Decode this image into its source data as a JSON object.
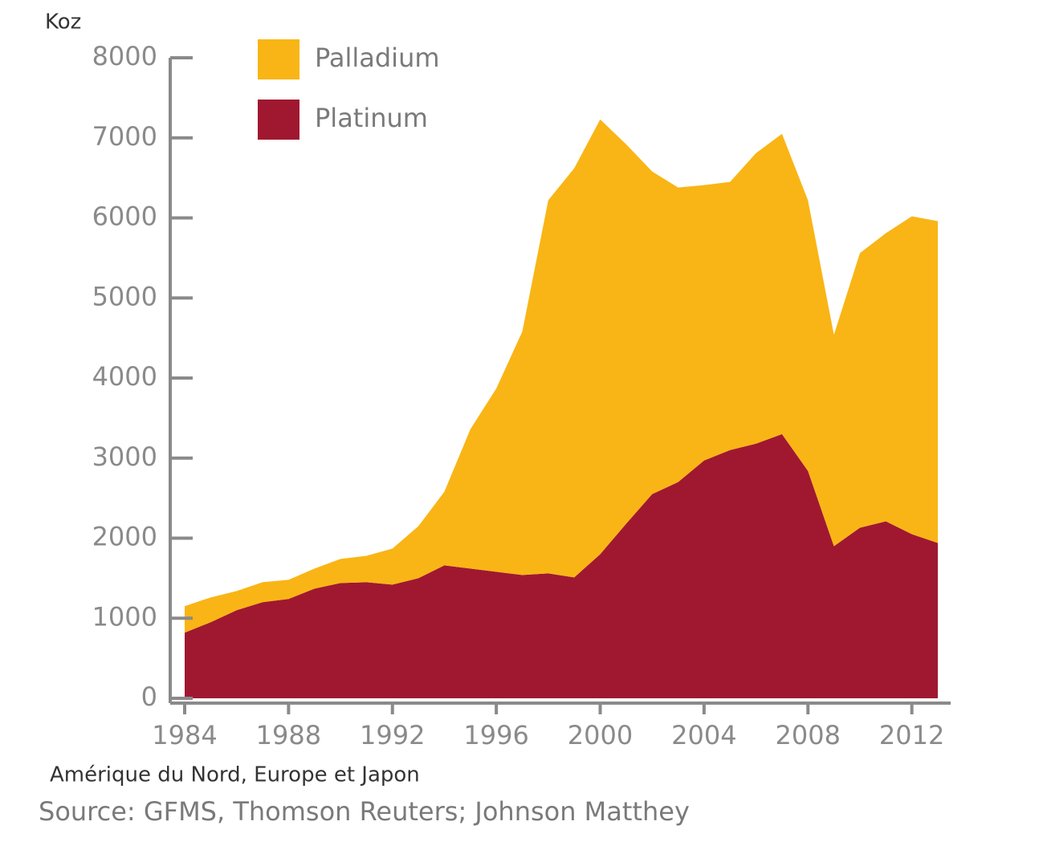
{
  "chart_data": {
    "type": "stacked-area",
    "y_label": "Koz",
    "subtitle": "Amérique du Nord, Europe et Japon",
    "source": "Source: GFMS, Thomson Reuters; Johnson Matthey",
    "x": [
      1984,
      1985,
      1986,
      1987,
      1988,
      1989,
      1990,
      1991,
      1992,
      1993,
      1994,
      1995,
      1996,
      1997,
      1998,
      1999,
      2000,
      2001,
      2002,
      2003,
      2004,
      2005,
      2006,
      2007,
      2008,
      2009,
      2010,
      2011,
      2012,
      2013
    ],
    "series": [
      {
        "name": "Platinum",
        "color": "#a01830",
        "values": [
          820,
          950,
          1100,
          1200,
          1240,
          1370,
          1440,
          1450,
          1420,
          1500,
          1660,
          1620,
          1580,
          1540,
          1560,
          1510,
          1800,
          2180,
          2550,
          2700,
          2970,
          3100,
          3180,
          3300,
          2840,
          1900,
          2130,
          2210,
          2050,
          1940
        ]
      },
      {
        "name": "Palladium",
        "color": "#f9b515",
        "values": [
          330,
          310,
          240,
          250,
          240,
          250,
          300,
          330,
          450,
          650,
          920,
          1740,
          2290,
          3040,
          4660,
          5110,
          5430,
          4740,
          4030,
          3680,
          3440,
          3350,
          3630,
          3750,
          3380,
          2640,
          3430,
          3600,
          3970,
          4020
        ]
      }
    ],
    "xlim": [
      1984,
      2013
    ],
    "xticks": [
      1984,
      1988,
      1992,
      1996,
      2000,
      2004,
      2008,
      2012
    ],
    "ylim": [
      0,
      8000
    ],
    "yticks": [
      0,
      1000,
      2000,
      3000,
      4000,
      5000,
      6000,
      7000,
      8000
    ]
  }
}
